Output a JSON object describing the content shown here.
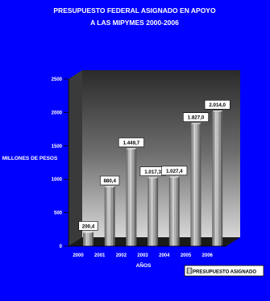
{
  "chart_data": {
    "type": "bar",
    "title_lines": [
      "PRESUPUESTO FEDERAL ASIGNADO EN APOYO",
      "A LAS MIPYMES 2000-2006"
    ],
    "xlabel": "AÑOS",
    "ylabel": "MILLONES DE PESOS",
    "categories": [
      "2000",
      "2001",
      "2002",
      "2003",
      "2004",
      "2005",
      "2006"
    ],
    "series": [
      {
        "name": "PRESUPUESTO ASIGNADO",
        "values": [
          200.4,
          880.4,
          1449.7,
          1017.3,
          1027.4,
          1827.0,
          2014.0
        ],
        "data_labels": [
          "200,4",
          "880,4",
          "1.449,7",
          "1.017,3",
          "1.027,4",
          "1.827,0",
          "2.014,0"
        ]
      }
    ],
    "ylim": [
      0,
      2500
    ],
    "yticks": [
      "0",
      "500",
      "1000",
      "1500",
      "2000",
      "2500"
    ],
    "grid": false,
    "legend_position": "bottom-right",
    "colors": {
      "background": "#0000ff",
      "plot_wall": "#5a5a5a",
      "plot_floor": "#1a1a1a",
      "bar": "#c8c8c8",
      "bar_shade": "#7a7a7a",
      "text": "#ffffff",
      "label_box": "#ffffff",
      "label_text": "#000000"
    }
  }
}
